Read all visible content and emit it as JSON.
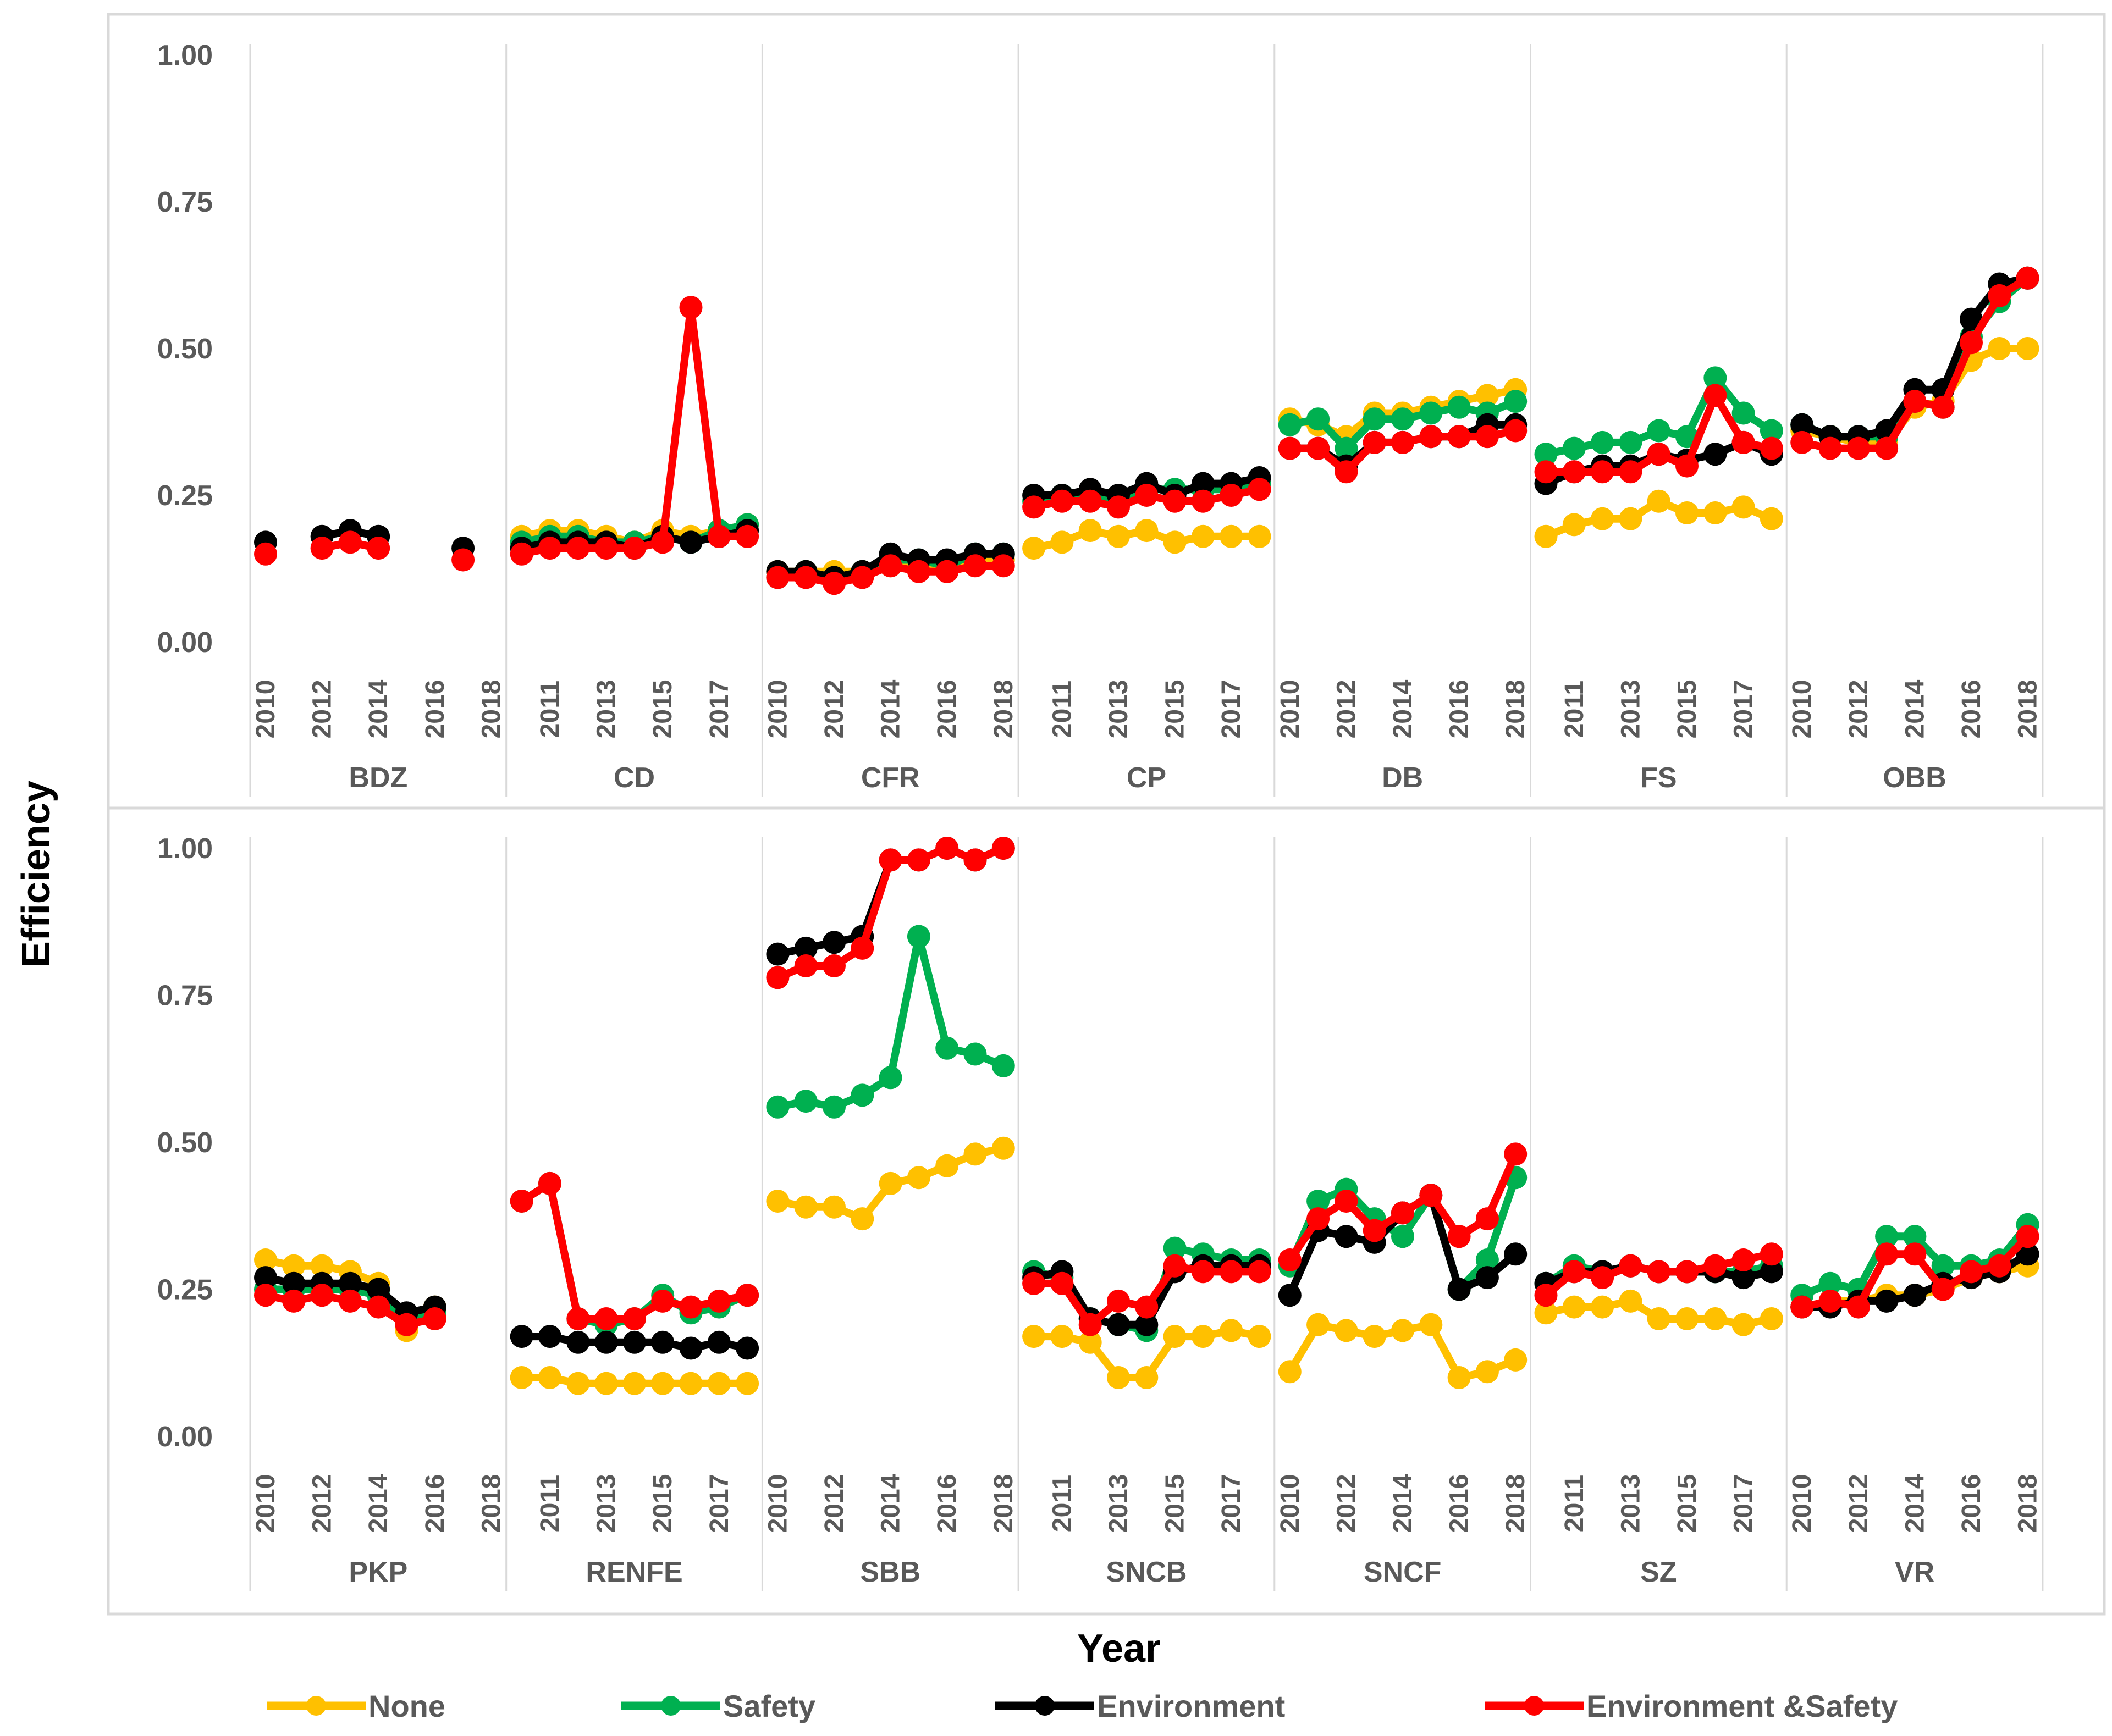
{
  "chart_data": {
    "type": "line",
    "xlabel": "Year",
    "ylabel": "Efficiency",
    "ylim": [
      0,
      1
    ],
    "yticks": [
      "0.00",
      "0.25",
      "0.50",
      "0.75",
      "1.00"
    ],
    "years": [
      2010,
      2011,
      2012,
      2013,
      2014,
      2015,
      2016,
      2017,
      2018
    ],
    "legend": [
      {
        "key": "none",
        "label": "None",
        "color": "#FFC000"
      },
      {
        "key": "safety",
        "label": "Safety",
        "color": "#00B050"
      },
      {
        "key": "environment",
        "label": "Environment",
        "color": "#000000"
      },
      {
        "key": "envsafety",
        "label": "Environment &Safety",
        "color": "#FF0000"
      }
    ],
    "panels": [
      {
        "groups": [
          {
            "name": "BDZ",
            "tick_labels": [
              "2010",
              "2012",
              "2014",
              "2016",
              "2018"
            ],
            "series": {
              "none": [
                null,
                null,
                null,
                null,
                null,
                null,
                null,
                null,
                null
              ],
              "safety": [
                null,
                null,
                null,
                null,
                null,
                null,
                null,
                null,
                null
              ],
              "environment": [
                0.17,
                null,
                0.18,
                0.19,
                0.18,
                null,
                null,
                0.16,
                null
              ],
              "envsafety": [
                0.15,
                null,
                0.16,
                0.17,
                0.16,
                null,
                null,
                0.14,
                null
              ]
            }
          },
          {
            "name": "CD",
            "tick_labels": [
              "2011",
              "2013",
              "2015",
              "2017"
            ],
            "series": {
              "none": [
                0.18,
                0.19,
                0.19,
                0.18,
                0.17,
                0.19,
                0.18,
                0.19,
                0.2
              ],
              "safety": [
                0.17,
                0.18,
                0.18,
                0.17,
                0.17,
                0.18,
                0.17,
                0.19,
                0.2
              ],
              "environment": [
                0.16,
                0.17,
                0.17,
                0.17,
                0.16,
                0.18,
                0.17,
                0.18,
                0.19
              ],
              "envsafety": [
                0.15,
                0.16,
                0.16,
                0.16,
                0.16,
                0.17,
                0.57,
                0.18,
                0.18
              ]
            }
          },
          {
            "name": "CFR",
            "tick_labels": [
              "2010",
              "2012",
              "2014",
              "2016",
              "2018"
            ],
            "series": {
              "none": [
                0.12,
                0.12,
                0.12,
                0.12,
                0.13,
                0.13,
                0.13,
                0.14,
                0.14
              ],
              "safety": [
                0.11,
                0.12,
                0.11,
                0.12,
                0.14,
                0.14,
                0.13,
                0.15,
                0.15
              ],
              "environment": [
                0.12,
                0.12,
                0.11,
                0.12,
                0.15,
                0.14,
                0.14,
                0.15,
                0.15
              ],
              "envsafety": [
                0.11,
                0.11,
                0.1,
                0.11,
                0.13,
                0.12,
                0.12,
                0.13,
                0.13
              ]
            }
          },
          {
            "name": "CP",
            "tick_labels": [
              "2011",
              "2013",
              "2015",
              "2017"
            ],
            "series": {
              "none": [
                0.16,
                0.17,
                0.19,
                0.18,
                0.19,
                0.17,
                0.18,
                0.18,
                0.18
              ],
              "safety": [
                0.24,
                0.25,
                0.25,
                0.24,
                0.26,
                0.26,
                0.26,
                0.26,
                0.27
              ],
              "environment": [
                0.25,
                0.25,
                0.26,
                0.25,
                0.27,
                0.25,
                0.27,
                0.27,
                0.28
              ],
              "envsafety": [
                0.23,
                0.24,
                0.24,
                0.23,
                0.25,
                0.24,
                0.24,
                0.25,
                0.26
              ]
            }
          },
          {
            "name": "DB",
            "tick_labels": [
              "2010",
              "2012",
              "2014",
              "2016",
              "2018"
            ],
            "series": {
              "none": [
                0.38,
                0.37,
                0.35,
                0.39,
                0.39,
                0.4,
                0.41,
                0.42,
                0.43
              ],
              "safety": [
                0.37,
                0.38,
                0.33,
                0.38,
                0.38,
                0.39,
                0.4,
                0.39,
                0.41
              ],
              "environment": [
                0.33,
                0.33,
                0.3,
                0.34,
                0.34,
                0.35,
                0.35,
                0.37,
                0.37
              ],
              "envsafety": [
                0.33,
                0.33,
                0.29,
                0.34,
                0.34,
                0.35,
                0.35,
                0.35,
                0.36
              ]
            }
          },
          {
            "name": "FS",
            "tick_labels": [
              "2011",
              "2013",
              "2015",
              "2017"
            ],
            "series": {
              "none": [
                0.18,
                0.2,
                0.21,
                0.21,
                0.24,
                0.22,
                0.22,
                0.23,
                0.21
              ],
              "safety": [
                0.32,
                0.33,
                0.34,
                0.34,
                0.36,
                0.35,
                0.45,
                0.39,
                0.36
              ],
              "environment": [
                0.27,
                0.29,
                0.3,
                0.3,
                0.32,
                0.31,
                0.32,
                0.34,
                0.32
              ],
              "envsafety": [
                0.29,
                0.29,
                0.29,
                0.29,
                0.32,
                0.3,
                0.42,
                0.34,
                0.33
              ]
            }
          },
          {
            "name": "OBB",
            "tick_labels": [
              "2010",
              "2012",
              "2014",
              "2016",
              "2018"
            ],
            "series": {
              "none": [
                0.36,
                0.35,
                0.34,
                0.34,
                0.4,
                0.41,
                0.48,
                0.5,
                0.5
              ],
              "safety": [
                0.37,
                0.35,
                0.35,
                0.35,
                0.41,
                0.4,
                0.52,
                0.58,
                0.62
              ],
              "environment": [
                0.37,
                0.35,
                0.35,
                0.36,
                0.43,
                0.43,
                0.55,
                0.61,
                0.62
              ],
              "envsafety": [
                0.34,
                0.33,
                0.33,
                0.33,
                0.41,
                0.4,
                0.51,
                0.59,
                0.62
              ]
            }
          }
        ]
      },
      {
        "groups": [
          {
            "name": "PKP",
            "tick_labels": [
              "2010",
              "2012",
              "2014",
              "2016",
              "2018"
            ],
            "series": {
              "none": [
                0.3,
                0.29,
                0.29,
                0.28,
                0.26,
                0.18,
                0.22,
                null,
                null
              ],
              "safety": [
                0.25,
                0.25,
                0.25,
                0.25,
                0.24,
                0.2,
                0.21,
                null,
                null
              ],
              "environment": [
                0.27,
                0.26,
                0.26,
                0.26,
                0.25,
                0.21,
                0.22,
                null,
                null
              ],
              "envsafety": [
                0.24,
                0.23,
                0.24,
                0.23,
                0.22,
                0.19,
                0.2,
                null,
                null
              ]
            }
          },
          {
            "name": "RENFE",
            "tick_labels": [
              "2011",
              "2013",
              "2015",
              "2017"
            ],
            "series": {
              "none": [
                0.1,
                0.1,
                0.09,
                0.09,
                0.09,
                0.09,
                0.09,
                0.09,
                0.09
              ],
              "safety": [
                0.4,
                0.43,
                0.2,
                0.19,
                0.2,
                0.24,
                0.21,
                0.22,
                0.24
              ],
              "environment": [
                0.17,
                0.17,
                0.16,
                0.16,
                0.16,
                0.16,
                0.15,
                0.16,
                0.15
              ],
              "envsafety": [
                0.4,
                0.43,
                0.2,
                0.2,
                0.2,
                0.23,
                0.22,
                0.23,
                0.24
              ]
            }
          },
          {
            "name": "SBB",
            "tick_labels": [
              "2010",
              "2012",
              "2014",
              "2016",
              "2018"
            ],
            "series": {
              "none": [
                0.4,
                0.39,
                0.39,
                0.37,
                0.43,
                0.44,
                0.46,
                0.48,
                0.49
              ],
              "safety": [
                0.56,
                0.57,
                0.56,
                0.58,
                0.61,
                0.85,
                0.66,
                0.65,
                0.63
              ],
              "environment": [
                0.82,
                0.83,
                0.84,
                0.85,
                0.98,
                0.98,
                1.0,
                0.98,
                1.0
              ],
              "envsafety": [
                0.78,
                0.8,
                0.8,
                0.83,
                0.98,
                0.98,
                1.0,
                0.98,
                1.0
              ]
            }
          },
          {
            "name": "SNCB",
            "tick_labels": [
              "2011",
              "2013",
              "2015",
              "2017"
            ],
            "series": {
              "none": [
                0.17,
                0.17,
                0.16,
                0.1,
                0.1,
                0.17,
                0.17,
                0.18,
                0.17
              ],
              "safety": [
                0.28,
                0.27,
                0.2,
                0.19,
                0.18,
                0.32,
                0.31,
                0.3,
                0.3
              ],
              "environment": [
                0.27,
                0.28,
                0.2,
                0.19,
                0.19,
                0.28,
                0.29,
                0.29,
                0.29
              ],
              "envsafety": [
                0.26,
                0.26,
                0.19,
                0.23,
                0.22,
                0.29,
                0.28,
                0.28,
                0.28
              ]
            }
          },
          {
            "name": "SNCF",
            "tick_labels": [
              "2010",
              "2012",
              "2014",
              "2016",
              "2018"
            ],
            "series": {
              "none": [
                0.11,
                0.19,
                0.18,
                0.17,
                0.18,
                0.19,
                0.1,
                0.11,
                0.13
              ],
              "safety": [
                0.29,
                0.4,
                0.42,
                0.37,
                0.34,
                0.41,
                0.25,
                0.3,
                0.44
              ],
              "environment": [
                0.24,
                0.35,
                0.34,
                0.33,
                0.38,
                0.41,
                0.25,
                0.27,
                0.31
              ],
              "envsafety": [
                0.3,
                0.37,
                0.4,
                0.35,
                0.38,
                0.41,
                0.34,
                0.37,
                0.48
              ]
            }
          },
          {
            "name": "SZ",
            "tick_labels": [
              "2011",
              "2013",
              "2015",
              "2017"
            ],
            "series": {
              "none": [
                0.21,
                0.22,
                0.22,
                0.23,
                0.2,
                0.2,
                0.2,
                0.19,
                0.2
              ],
              "safety": [
                0.26,
                0.29,
                0.28,
                0.29,
                0.28,
                0.28,
                0.28,
                0.28,
                0.29
              ],
              "environment": [
                0.26,
                0.28,
                0.28,
                0.29,
                0.28,
                0.28,
                0.28,
                0.27,
                0.28
              ],
              "envsafety": [
                0.24,
                0.28,
                0.27,
                0.29,
                0.28,
                0.28,
                0.29,
                0.3,
                0.31
              ]
            }
          },
          {
            "name": "VR",
            "tick_labels": [
              "2010",
              "2012",
              "2014",
              "2016",
              "2018"
            ],
            "series": {
              "none": [
                0.22,
                0.23,
                0.23,
                0.24,
                0.24,
                0.25,
                0.27,
                0.28,
                0.29
              ],
              "safety": [
                0.24,
                0.26,
                0.25,
                0.34,
                0.34,
                0.29,
                0.29,
                0.3,
                0.36
              ],
              "environment": [
                0.22,
                0.22,
                0.23,
                0.23,
                0.24,
                0.26,
                0.27,
                0.28,
                0.31
              ],
              "envsafety": [
                0.22,
                0.23,
                0.22,
                0.31,
                0.31,
                0.25,
                0.28,
                0.29,
                0.34
              ]
            }
          }
        ]
      }
    ]
  }
}
